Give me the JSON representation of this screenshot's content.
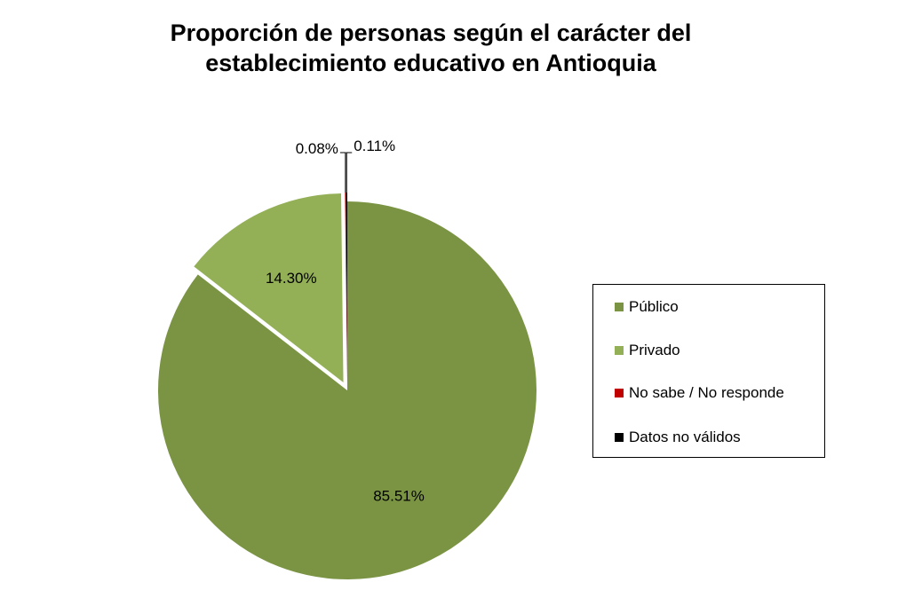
{
  "chart_data": {
    "type": "pie",
    "title_lines": [
      "Proporción de personas según el carácter del",
      "establecimiento educativo en Antioquia"
    ],
    "slices": [
      {
        "label": "Público",
        "value": 85.51,
        "value_label": "85.51%",
        "color": "#7a9444",
        "exploded": false
      },
      {
        "label": "Privado",
        "value": 14.3,
        "value_label": "14.30%",
        "color": "#93b057",
        "exploded": true
      },
      {
        "label": "No sabe / No responde",
        "value": 0.08,
        "value_label": "0.08%",
        "color": "#c00000",
        "exploded": true
      },
      {
        "label": "Datos no válidos",
        "value": 0.11,
        "value_label": "0.11%",
        "color": "#000000",
        "exploded": true
      }
    ],
    "legend_position": "right"
  }
}
